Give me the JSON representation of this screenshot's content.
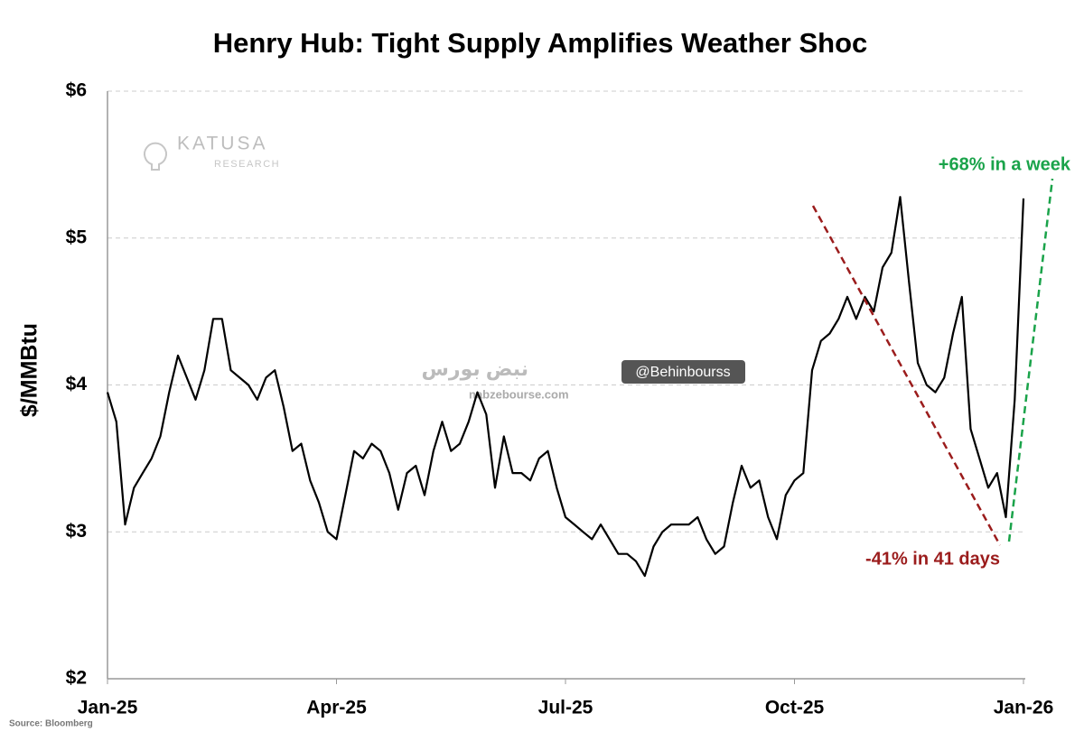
{
  "chart_data": {
    "type": "line",
    "title": "Henry Hub: Tight Supply Amplifies Weather Shoc",
    "y_label": "$/MMBtu",
    "source": "Source: Bloomberg",
    "annotations": [
      "+68% in a week",
      "-41% in 41 days"
    ],
    "watermarks": [
      "KATUSA",
      "RESEARCH",
      "نبض بورس",
      "@Behinbourss",
      "nabzebourse.com"
    ],
    "categories": [
      "Jan-25",
      null,
      null,
      null,
      null,
      null,
      null,
      null,
      null,
      null,
      null,
      null,
      null,
      null,
      null,
      null,
      null,
      null,
      null,
      null,
      null,
      null,
      null,
      null,
      null,
      null,
      "Apr-25",
      null,
      null,
      null,
      null,
      null,
      null,
      null,
      null,
      null,
      null,
      null,
      null,
      null,
      null,
      null,
      null,
      null,
      null,
      null,
      null,
      null,
      null,
      null,
      null,
      null,
      "Jul-25",
      null,
      null,
      null,
      null,
      null,
      null,
      null,
      null,
      null,
      null,
      null,
      null,
      null,
      null,
      null,
      null,
      null,
      null,
      null,
      null,
      null,
      null,
      null,
      null,
      null,
      "Oct-25",
      null,
      null,
      null,
      null,
      null,
      null,
      null,
      null,
      null,
      null,
      null,
      null,
      null,
      null,
      null,
      null,
      null,
      null,
      null,
      null,
      null,
      null,
      null,
      null,
      null,
      "Jan-26"
    ],
    "values": [
      3.95,
      3.75,
      3.05,
      3.3,
      3.4,
      3.5,
      3.65,
      3.95,
      4.2,
      4.05,
      3.9,
      4.1,
      4.45,
      4.45,
      4.1,
      4.05,
      4.0,
      3.9,
      4.05,
      4.1,
      3.85,
      3.55,
      3.6,
      3.35,
      3.2,
      3.0,
      2.95,
      3.25,
      3.55,
      3.5,
      3.6,
      3.55,
      3.4,
      3.15,
      3.4,
      3.45,
      3.25,
      3.55,
      3.75,
      3.55,
      3.6,
      3.75,
      3.95,
      3.8,
      3.3,
      3.65,
      3.4,
      3.4,
      3.35,
      3.5,
      3.55,
      3.3,
      3.1,
      3.05,
      3.0,
      2.95,
      3.05,
      2.95,
      2.85,
      2.85,
      2.8,
      2.7,
      2.9,
      3.0,
      3.05,
      3.05,
      3.05,
      3.1,
      2.95,
      2.85,
      2.9,
      3.2,
      3.45,
      3.3,
      3.35,
      3.1,
      2.95,
      3.25,
      3.35,
      3.4,
      4.1,
      4.3,
      4.35,
      4.45,
      4.6,
      4.45,
      4.6,
      4.5,
      4.8,
      4.9,
      5.28,
      4.7,
      4.15,
      4.0,
      3.95,
      4.05,
      4.35,
      4.6,
      3.7,
      3.5,
      3.3,
      3.4,
      3.1,
      3.9,
      5.27
    ],
    "color": "#000000",
    "ylim": [
      2,
      6
    ],
    "yticks": [
      {
        "value": 2,
        "label": "$2"
      },
      {
        "value": 3,
        "label": "$3"
      },
      {
        "value": 4,
        "label": "$4"
      },
      {
        "value": 5,
        "label": "$5"
      },
      {
        "value": 6,
        "label": "$6"
      }
    ],
    "grid": true
  }
}
